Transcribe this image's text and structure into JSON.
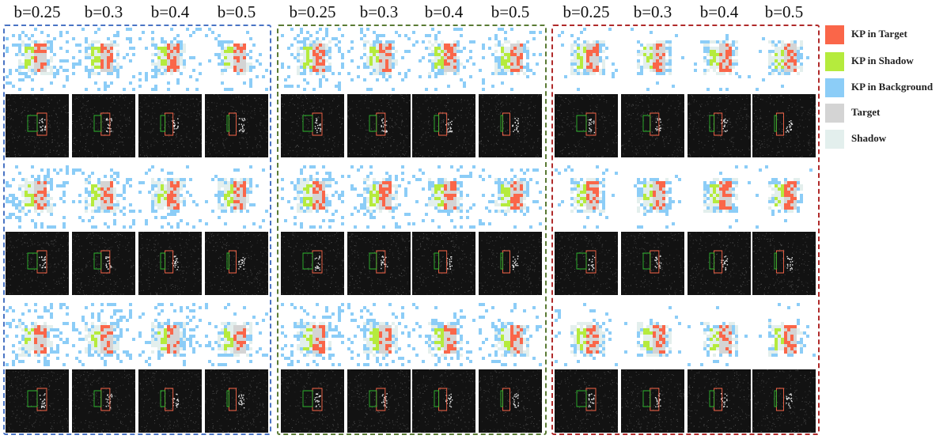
{
  "headers": [
    "b=0.25",
    "b=0.3",
    "b=0.4",
    "b=0.5",
    "b=0.25",
    "b=0.3",
    "b=0.4",
    "b=0.5",
    "b=0.25",
    "b=0.3",
    "b=0.4",
    "b=0.5"
  ],
  "groups": [
    {
      "name": "left",
      "border_color": "#4a74c4"
    },
    {
      "name": "middle",
      "border_color": "#5a7a34"
    },
    {
      "name": "right",
      "border_color": "#b02a2a"
    }
  ],
  "legend": [
    {
      "label": "KP in Target",
      "color": "#fa6649"
    },
    {
      "label": "KP in Shadow",
      "color": "#b5eb3d"
    },
    {
      "label": "KP in Background",
      "color": "#8ccdf7"
    },
    {
      "label": "Target",
      "color": "#d4d4d4"
    },
    {
      "label": "Shadow",
      "color": "#e3efed"
    }
  ],
  "rows": 3,
  "columns_per_group": 4
}
